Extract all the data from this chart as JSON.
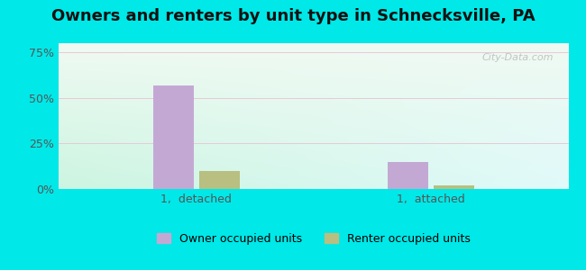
{
  "title": "Owners and renters by unit type in Schnecksville, PA",
  "categories": [
    "1,  detached",
    "1,  attached"
  ],
  "owner_values": [
    57.0,
    15.0
  ],
  "renter_values": [
    10.0,
    2.0
  ],
  "owner_color": "#c4a8d4",
  "renter_color": "#b8bf80",
  "background_color": "#00e8e8",
  "ylabel_ticks": [
    "0%",
    "25%",
    "50%",
    "75%"
  ],
  "ytick_values": [
    0,
    25,
    50,
    75
  ],
  "ylim": [
    0,
    80
  ],
  "title_fontsize": 13,
  "tick_fontsize": 9,
  "legend_label_owner": "Owner occupied units",
  "legend_label_renter": "Renter occupied units",
  "watermark": "City-Data.com",
  "bar_width": 0.08,
  "group_centers": [
    0.27,
    0.73
  ]
}
